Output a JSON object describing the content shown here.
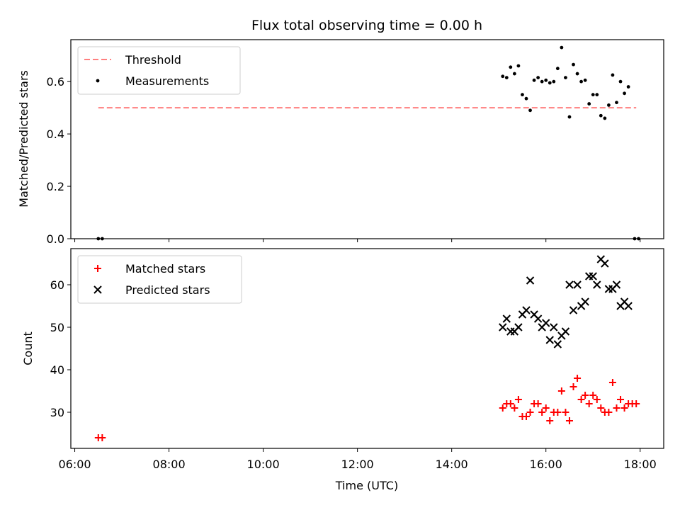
{
  "chart_data": [
    {
      "type": "scatter",
      "title": "Flux total observing time = 0.00 h",
      "xlabel": "",
      "ylabel": "Matched/Predicted stars",
      "xlim": [
        "05:55",
        "18:30"
      ],
      "ylim": [
        0,
        0.76
      ],
      "x_ticks": [
        "06:00",
        "08:00",
        "10:00",
        "12:00",
        "14:00",
        "16:00",
        "18:00"
      ],
      "y_ticks": [
        "0.0",
        "0.2",
        "0.4",
        "0.6"
      ],
      "legend": {
        "position": "top-left",
        "entries": [
          "Threshold",
          "Measurements"
        ]
      },
      "threshold": {
        "name": "Threshold",
        "value": 0.5,
        "x_start": "06:30",
        "x_end": "17:55",
        "color": "#ff7f7f",
        "style": "dashed"
      },
      "series": [
        {
          "name": "Measurements",
          "color": "#000000",
          "marker": "dot",
          "points": [
            [
              "06:30",
              0.0
            ],
            [
              "06:35",
              0.0
            ],
            [
              "15:05",
              0.62
            ],
            [
              "15:10",
              0.615
            ],
            [
              "15:15",
              0.655
            ],
            [
              "15:20",
              0.63
            ],
            [
              "15:25",
              0.66
            ],
            [
              "15:30",
              0.55
            ],
            [
              "15:35",
              0.535
            ],
            [
              "15:40",
              0.49
            ],
            [
              "15:45",
              0.605
            ],
            [
              "15:50",
              0.615
            ],
            [
              "15:55",
              0.6
            ],
            [
              "16:00",
              0.605
            ],
            [
              "16:05",
              0.595
            ],
            [
              "16:10",
              0.6
            ],
            [
              "16:15",
              0.65
            ],
            [
              "16:20",
              0.73
            ],
            [
              "16:25",
              0.615
            ],
            [
              "16:30",
              0.465
            ],
            [
              "16:35",
              0.665
            ],
            [
              "16:40",
              0.63
            ],
            [
              "16:45",
              0.6
            ],
            [
              "16:50",
              0.605
            ],
            [
              "16:55",
              0.515
            ],
            [
              "17:00",
              0.55
            ],
            [
              "17:05",
              0.55
            ],
            [
              "17:10",
              0.47
            ],
            [
              "17:15",
              0.46
            ],
            [
              "17:20",
              0.51
            ],
            [
              "17:25",
              0.625
            ],
            [
              "17:30",
              0.52
            ],
            [
              "17:35",
              0.6
            ],
            [
              "17:40",
              0.555
            ],
            [
              "17:45",
              0.58
            ],
            [
              "17:53",
              0.0
            ],
            [
              "17:58",
              0.0
            ]
          ]
        }
      ]
    },
    {
      "type": "scatter",
      "title": "",
      "xlabel": "Time (UTC)",
      "ylabel": "Count",
      "xlim": [
        "05:55",
        "18:30"
      ],
      "ylim": [
        21.5,
        68.5
      ],
      "x_ticks": [
        "06:00",
        "08:00",
        "10:00",
        "12:00",
        "14:00",
        "16:00",
        "18:00"
      ],
      "y_ticks": [
        "30",
        "40",
        "50",
        "60"
      ],
      "legend": {
        "position": "top-left",
        "entries": [
          "Matched stars",
          "Predicted stars"
        ]
      },
      "series": [
        {
          "name": "Matched stars",
          "color": "#ff0000",
          "marker": "plus",
          "points": [
            [
              "06:30",
              24
            ],
            [
              "06:35",
              24
            ],
            [
              "15:05",
              31
            ],
            [
              "15:10",
              32
            ],
            [
              "15:15",
              32
            ],
            [
              "15:20",
              31
            ],
            [
              "15:25",
              33
            ],
            [
              "15:30",
              29
            ],
            [
              "15:35",
              29
            ],
            [
              "15:40",
              30
            ],
            [
              "15:45",
              32
            ],
            [
              "15:50",
              32
            ],
            [
              "15:55",
              30
            ],
            [
              "16:00",
              31
            ],
            [
              "16:05",
              28
            ],
            [
              "16:10",
              30
            ],
            [
              "16:15",
              30
            ],
            [
              "16:20",
              35
            ],
            [
              "16:25",
              30
            ],
            [
              "16:30",
              28
            ],
            [
              "16:35",
              36
            ],
            [
              "16:40",
              38
            ],
            [
              "16:45",
              33
            ],
            [
              "16:50",
              34
            ],
            [
              "16:55",
              32
            ],
            [
              "17:00",
              34
            ],
            [
              "17:05",
              33
            ],
            [
              "17:10",
              31
            ],
            [
              "17:15",
              30
            ],
            [
              "17:20",
              30
            ],
            [
              "17:25",
              37
            ],
            [
              "17:30",
              31
            ],
            [
              "17:35",
              33
            ],
            [
              "17:40",
              31
            ],
            [
              "17:45",
              32
            ],
            [
              "17:50",
              32
            ],
            [
              "17:55",
              32
            ]
          ]
        },
        {
          "name": "Predicted stars",
          "color": "#000000",
          "marker": "x",
          "points": [
            [
              "15:05",
              50
            ],
            [
              "15:10",
              52
            ],
            [
              "15:15",
              49
            ],
            [
              "15:20",
              49
            ],
            [
              "15:25",
              50
            ],
            [
              "15:30",
              53
            ],
            [
              "15:35",
              54
            ],
            [
              "15:40",
              61
            ],
            [
              "15:45",
              53
            ],
            [
              "15:50",
              52
            ],
            [
              "15:55",
              50
            ],
            [
              "16:00",
              51
            ],
            [
              "16:05",
              47
            ],
            [
              "16:10",
              50
            ],
            [
              "16:15",
              46
            ],
            [
              "16:20",
              48
            ],
            [
              "16:25",
              49
            ],
            [
              "16:30",
              60
            ],
            [
              "16:35",
              54
            ],
            [
              "16:40",
              60
            ],
            [
              "16:45",
              55
            ],
            [
              "16:50",
              56
            ],
            [
              "16:55",
              62
            ],
            [
              "17:00",
              62
            ],
            [
              "17:05",
              60
            ],
            [
              "17:10",
              66
            ],
            [
              "17:15",
              65
            ],
            [
              "17:20",
              59
            ],
            [
              "17:25",
              59
            ],
            [
              "17:30",
              60
            ],
            [
              "17:35",
              55
            ],
            [
              "17:40",
              56
            ],
            [
              "17:45",
              55
            ]
          ]
        }
      ]
    }
  ]
}
